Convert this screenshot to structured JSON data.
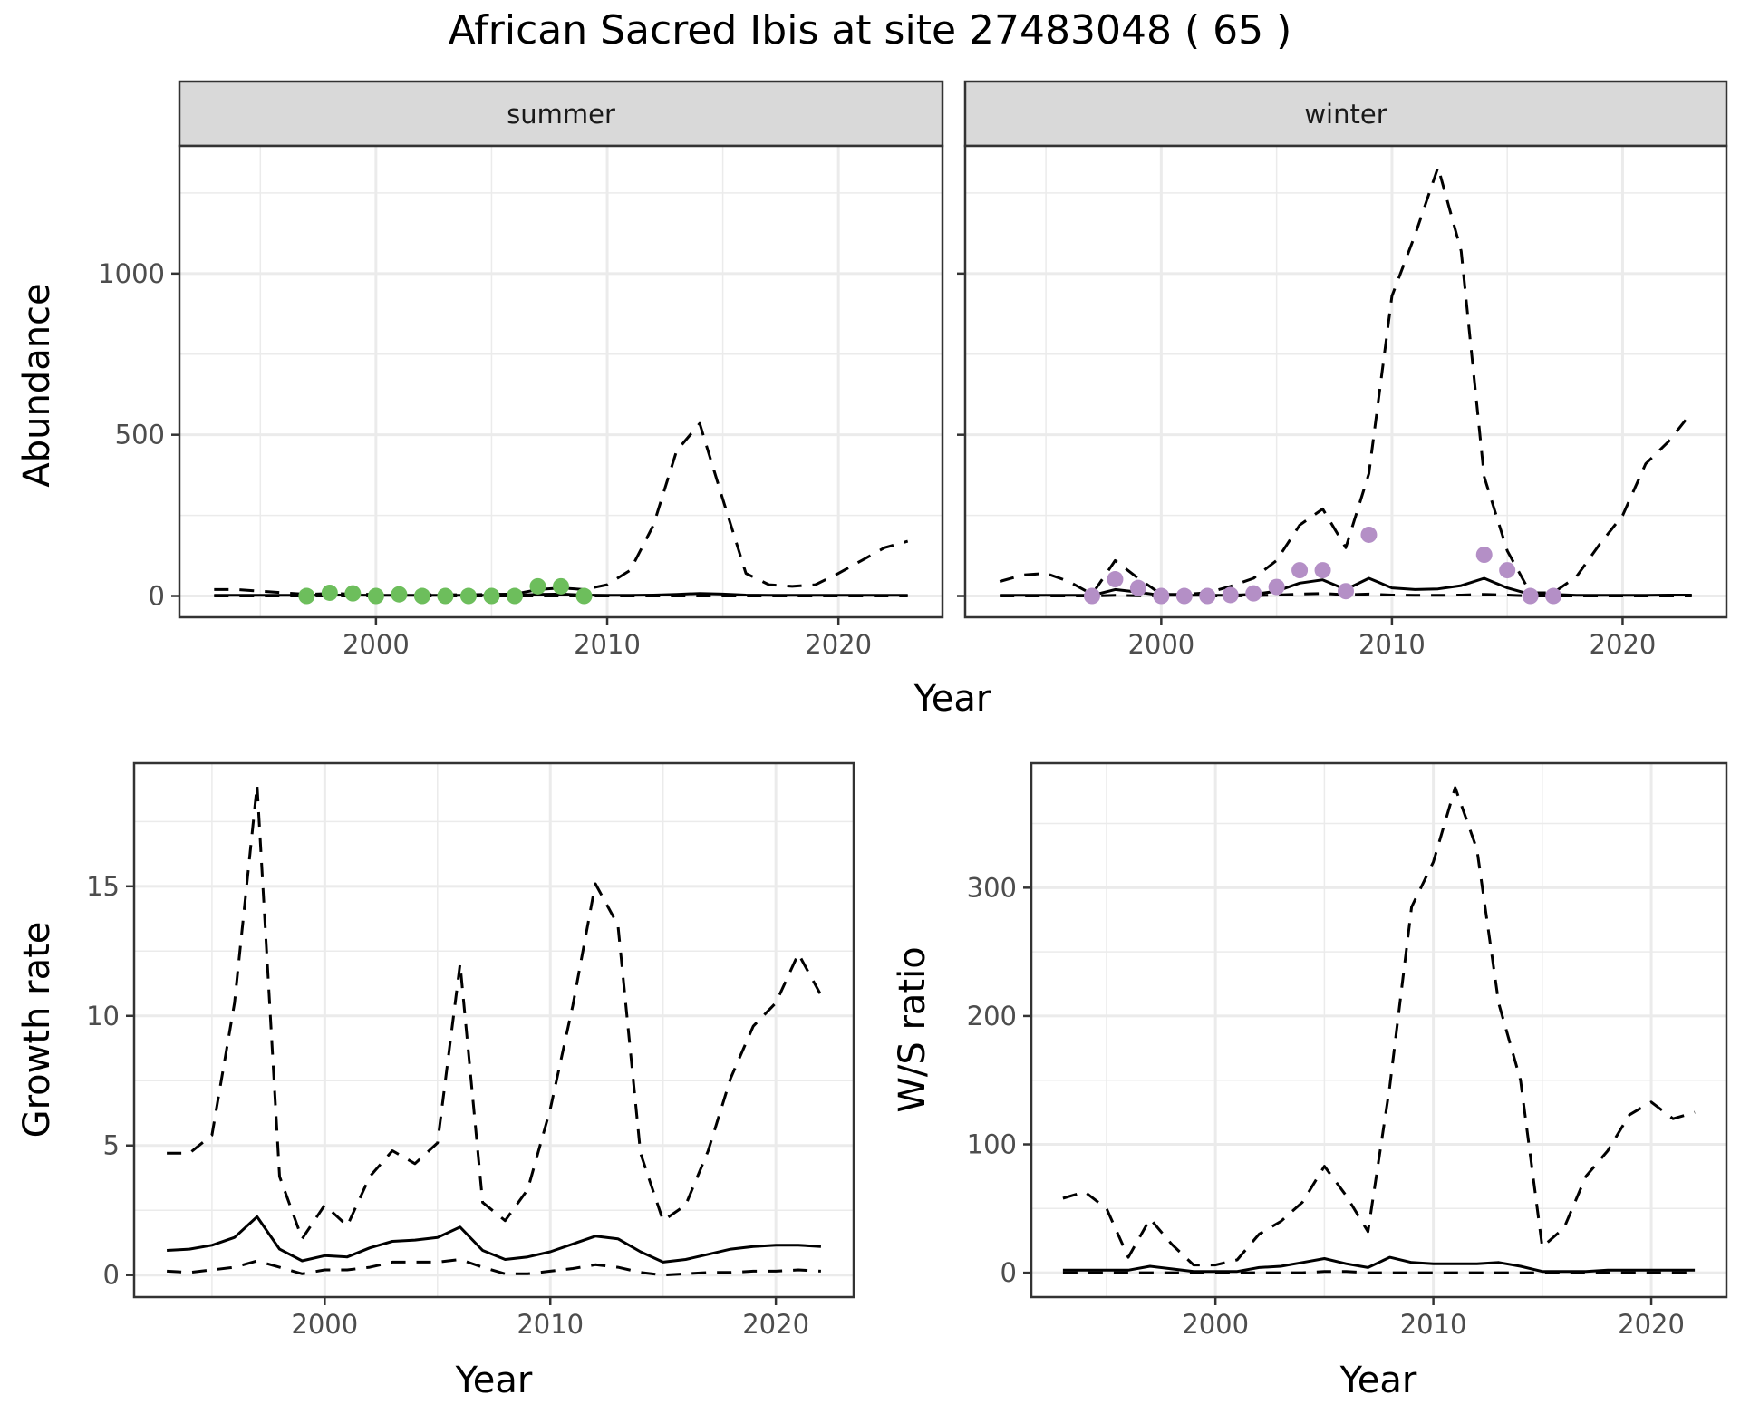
{
  "colors": {
    "summer_points": "#6DBE5C",
    "winter_points": "#B48FC6",
    "strip_bg": "#D9D9D9",
    "grid": "#EBEBEB",
    "border": "#333333"
  },
  "chart_data": [
    {
      "id": "abundance_summer",
      "type": "line",
      "title": "African Sacred Ibis at site 27483048 ( 65 )",
      "facet": "summer",
      "xlabel": "Year",
      "ylabel": "Abundance",
      "xlim": [
        1991.5,
        2024.5
      ],
      "ylim": [
        -66,
        1396
      ],
      "xticks": [
        2000,
        2010,
        2020
      ],
      "xtick_labels": [
        "2000",
        "2010",
        "2020"
      ],
      "yticks": [
        0,
        500,
        1000
      ],
      "ytick_labels": [
        "0",
        "500",
        "1000"
      ],
      "grid": true,
      "x": [
        1993,
        1994,
        1995,
        1996,
        1997,
        1998,
        1999,
        2000,
        2001,
        2002,
        2003,
        2004,
        2005,
        2006,
        2007,
        2008,
        2009,
        2010,
        2011,
        2012,
        2013,
        2014,
        2015,
        2016,
        2017,
        2018,
        2019,
        2020,
        2021,
        2022,
        2023
      ],
      "series": [
        {
          "name": "upper",
          "style": "dashed",
          "values": [
            20,
            20,
            15,
            10,
            5,
            8,
            6,
            5,
            5,
            4,
            4,
            4,
            5,
            6,
            20,
            25,
            20,
            35,
            80,
            220,
            450,
            535,
            300,
            70,
            35,
            30,
            35,
            70,
            110,
            150,
            170
          ]
        },
        {
          "name": "mean",
          "style": "solid",
          "values": [
            2,
            2,
            2,
            2,
            2,
            3,
            3,
            2,
            2,
            2,
            2,
            2,
            2,
            2,
            5,
            6,
            3,
            2,
            2,
            3,
            5,
            8,
            6,
            3,
            2,
            2,
            2,
            2,
            2,
            2,
            2
          ]
        },
        {
          "name": "lower",
          "style": "dashed",
          "values": [
            0,
            0,
            0,
            0,
            0,
            0,
            0,
            0,
            0,
            0,
            0,
            0,
            0,
            0,
            0,
            0,
            0,
            0,
            0,
            0,
            0,
            0,
            0,
            0,
            0,
            0,
            0,
            0,
            0,
            0,
            0
          ]
        }
      ],
      "points": {
        "x": [
          1997,
          1998,
          1999,
          2000,
          2001,
          2002,
          2003,
          2004,
          2005,
          2006,
          2007,
          2008,
          2009
        ],
        "y": [
          0,
          10,
          8,
          0,
          5,
          0,
          0,
          0,
          0,
          0,
          30,
          30,
          0
        ]
      }
    },
    {
      "id": "abundance_winter",
      "type": "line",
      "facet": "winter",
      "xlabel": "Year",
      "ylabel": "Abundance",
      "xlim": [
        1991.5,
        2024.5
      ],
      "ylim": [
        -66,
        1396
      ],
      "xticks": [
        2000,
        2010,
        2020
      ],
      "xtick_labels": [
        "2000",
        "2010",
        "2020"
      ],
      "yticks": [
        0,
        500,
        1000
      ],
      "grid": true,
      "x": [
        1993,
        1994,
        1995,
        1996,
        1997,
        1998,
        1999,
        2000,
        2001,
        2002,
        2003,
        2004,
        2005,
        2006,
        2007,
        2008,
        2009,
        2010,
        2011,
        2012,
        2013,
        2014,
        2015,
        2016,
        2017,
        2018,
        2019,
        2020,
        2021,
        2022,
        2023
      ],
      "series": [
        {
          "name": "upper",
          "style": "dashed",
          "values": [
            45,
            65,
            70,
            45,
            5,
            110,
            55,
            5,
            5,
            10,
            30,
            55,
            110,
            220,
            270,
            150,
            380,
            930,
            1120,
            1330,
            1070,
            370,
            140,
            10,
            10,
            60,
            160,
            250,
            410,
            480,
            570
          ]
        },
        {
          "name": "mean",
          "style": "solid",
          "values": [
            2,
            2,
            2,
            2,
            2,
            20,
            12,
            2,
            2,
            2,
            2,
            5,
            15,
            40,
            50,
            20,
            55,
            25,
            20,
            22,
            32,
            55,
            25,
            5,
            5,
            2,
            2,
            2,
            2,
            3,
            3
          ]
        },
        {
          "name": "lower",
          "style": "dashed",
          "values": [
            0,
            0,
            0,
            0,
            0,
            2,
            1,
            0,
            0,
            0,
            0,
            1,
            3,
            6,
            8,
            4,
            6,
            3,
            2,
            2,
            3,
            5,
            3,
            0,
            0,
            0,
            0,
            0,
            0,
            0,
            0
          ]
        }
      ],
      "points": {
        "x": [
          1997,
          1998,
          1999,
          2000,
          2001,
          2002,
          2003,
          2004,
          2005,
          2006,
          2007,
          2008,
          2009,
          2014,
          2015,
          2016,
          2017
        ],
        "y": [
          0,
          52,
          25,
          0,
          0,
          0,
          3,
          8,
          28,
          80,
          80,
          15,
          190,
          128,
          80,
          0,
          0
        ]
      }
    },
    {
      "id": "growth_rate",
      "type": "line",
      "xlabel": "Year",
      "ylabel": "Growth rate",
      "xlim": [
        1991.55,
        2023.45
      ],
      "ylim": [
        -0.85,
        19.75
      ],
      "xticks": [
        2000,
        2010,
        2020
      ],
      "xtick_labels": [
        "2000",
        "2010",
        "2020"
      ],
      "yticks": [
        0,
        5,
        10,
        15
      ],
      "ytick_labels": [
        "0",
        "5",
        "10",
        "15"
      ],
      "grid": true,
      "x": [
        1993,
        1994,
        1995,
        1996,
        1997,
        1998,
        1999,
        2000,
        2001,
        2002,
        2003,
        2004,
        2005,
        2006,
        2007,
        2008,
        2009,
        2010,
        2011,
        2012,
        2013,
        2014,
        2015,
        2016,
        2017,
        2018,
        2019,
        2020,
        2021,
        2022
      ],
      "series": [
        {
          "name": "upper",
          "style": "dashed",
          "values": [
            4.7,
            4.7,
            5.4,
            10.5,
            18.9,
            3.8,
            1.4,
            2.7,
            1.9,
            3.8,
            4.8,
            4.3,
            5.1,
            12.0,
            2.8,
            2.1,
            3.3,
            6.4,
            10.4,
            15.1,
            13.5,
            4.7,
            2.1,
            2.7,
            4.8,
            7.6,
            9.6,
            10.5,
            12.4,
            10.8
          ]
        },
        {
          "name": "mean",
          "style": "solid",
          "values": [
            0.95,
            1.0,
            1.15,
            1.45,
            2.25,
            1.0,
            0.55,
            0.75,
            0.7,
            1.05,
            1.3,
            1.35,
            1.45,
            1.85,
            0.95,
            0.6,
            0.7,
            0.9,
            1.2,
            1.5,
            1.4,
            0.9,
            0.5,
            0.6,
            0.8,
            1.0,
            1.1,
            1.15,
            1.15,
            1.1
          ]
        },
        {
          "name": "lower",
          "style": "dashed",
          "values": [
            0.15,
            0.1,
            0.2,
            0.3,
            0.55,
            0.3,
            0.05,
            0.2,
            0.2,
            0.3,
            0.5,
            0.5,
            0.5,
            0.6,
            0.3,
            0.05,
            0.05,
            0.15,
            0.25,
            0.4,
            0.3,
            0.1,
            0.0,
            0.05,
            0.1,
            0.1,
            0.15,
            0.15,
            0.2,
            0.15
          ]
        }
      ]
    },
    {
      "id": "ws_ratio",
      "type": "line",
      "xlabel": "Year",
      "ylabel": "W/S ratio",
      "xlim": [
        1991.55,
        2023.45
      ],
      "ylim": [
        -19,
        397
      ],
      "xticks": [
        2000,
        2010,
        2020
      ],
      "xtick_labels": [
        "2000",
        "2010",
        "2020"
      ],
      "yticks": [
        0,
        100,
        200,
        300
      ],
      "ytick_labels": [
        "0",
        "100",
        "200",
        "300"
      ],
      "grid": true,
      "x": [
        1993,
        1994,
        1995,
        1996,
        1997,
        1998,
        1999,
        2000,
        2001,
        2002,
        2003,
        2004,
        2005,
        2006,
        2007,
        2008,
        2009,
        2010,
        2011,
        2012,
        2013,
        2014,
        2015,
        2016,
        2017,
        2018,
        2019,
        2020,
        2021,
        2022
      ],
      "series": [
        {
          "name": "upper",
          "style": "dashed",
          "values": [
            58,
            63,
            50,
            12,
            42,
            22,
            6,
            6,
            10,
            30,
            40,
            55,
            83,
            60,
            32,
            145,
            285,
            320,
            378,
            330,
            210,
            150,
            20,
            35,
            75,
            95,
            123,
            133,
            120,
            125
          ]
        },
        {
          "name": "mean",
          "style": "solid",
          "values": [
            2,
            2,
            2,
            2,
            5,
            3,
            1,
            1,
            1,
            4,
            5,
            8,
            11,
            7,
            4,
            12,
            8,
            7,
            7,
            7,
            8,
            5,
            1,
            1,
            1,
            2,
            2,
            2,
            2,
            2
          ]
        },
        {
          "name": "lower",
          "style": "dashed",
          "values": [
            0,
            0,
            0,
            0,
            0,
            0,
            0,
            0,
            0,
            0,
            0,
            0,
            1,
            1,
            0,
            0,
            0,
            0,
            0,
            0,
            0,
            0,
            0,
            0,
            0,
            0,
            0,
            0,
            0,
            0
          ]
        }
      ]
    }
  ],
  "labels": {
    "title": "African Sacred Ibis at site 27483048 ( 65 )",
    "strip_summer": "summer",
    "strip_winter": "winter",
    "top_ylabel": "Abundance",
    "top_xlabel": "Year",
    "bl_ylabel": "Growth rate",
    "bl_xlabel": "Year",
    "br_ylabel": "W/S ratio",
    "br_xlabel": "Year"
  }
}
